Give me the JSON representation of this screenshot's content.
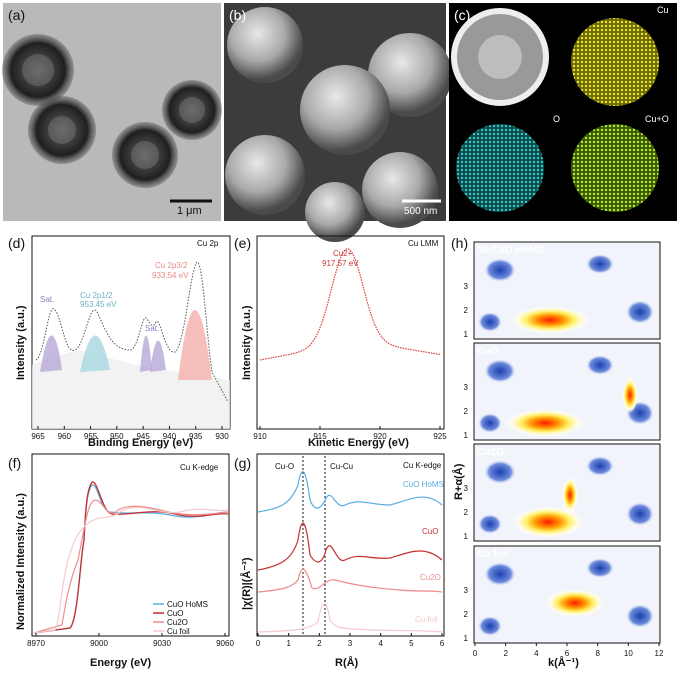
{
  "panels": {
    "a": {
      "label": "(a)",
      "scalebar": "1 μm"
    },
    "b": {
      "label": "(b)",
      "scalebar": "500 nm"
    },
    "c": {
      "label": "(c)",
      "maps": [
        "Cu",
        "O",
        "Cu+O"
      ]
    },
    "d": {
      "label": "(d)",
      "tag": "Cu 2p",
      "xlabel": "Binding Energy (eV)",
      "ylabel": "Intensity (a.u.)",
      "xticks": [
        "965",
        "960",
        "955",
        "950",
        "945",
        "940",
        "935",
        "930"
      ],
      "annotations": {
        "sat1": "Sat.",
        "sat2": "Sat.",
        "p12": "Cu 2p1/2",
        "p12v": "953.45 eV",
        "p32": "Cu 2p3/2",
        "p32v": "933.54 eV"
      }
    },
    "e": {
      "label": "(e)",
      "tag": "Cu LMM",
      "xlabel": "Kinetic Energy (eV)",
      "ylabel": "Intensity (a.u.)",
      "xticks": [
        "910",
        "915",
        "920",
        "925"
      ],
      "peak_name": "Cu2+",
      "peak_value": "917.57 eV"
    },
    "f": {
      "label": "(f)",
      "tag": "Cu K-edge",
      "xlabel": "Energy (eV)",
      "ylabel": "Normalized Intensity (a.u.)",
      "xticks": [
        "8970",
        "9000",
        "9030",
        "9060"
      ],
      "legend": [
        "CuO HoMS",
        "CuO",
        "Cu2O",
        "Cu foil"
      ]
    },
    "g": {
      "label": "(g)",
      "tag": "Cu K-edge",
      "xlabel": "R(Å)",
      "ylabel": "|χ(R)|(Å⁻³)",
      "xticks": [
        "0",
        "1",
        "2",
        "3",
        "4",
        "5",
        "6"
      ],
      "bond1": "Cu-O",
      "bond2": "Cu-Cu",
      "series": [
        "CuO HoMS",
        "CuO",
        "Cu2O",
        "Cu foil"
      ]
    },
    "h": {
      "label": "(h)",
      "xlabel": "k(Å⁻¹)",
      "ylabel": "R+α(Å)",
      "xticks": [
        "0",
        "2",
        "4",
        "6",
        "8",
        "10",
        "12"
      ],
      "yticks": [
        "1",
        "2",
        "3"
      ],
      "maps": [
        "3s-CuO-HoMS",
        "CuO",
        "Cu2O",
        "Cu foil"
      ]
    }
  },
  "colors": {
    "hom": "#5aaee0",
    "cuo": "#c62e2e",
    "cu2o": "#ef8c8c",
    "foil": "#f5c9cc",
    "xps_fill_a": "#b6a8d8",
    "xps_fill_b": "#a6d6e0",
    "xps_fill_c": "#f5b4b0"
  }
}
